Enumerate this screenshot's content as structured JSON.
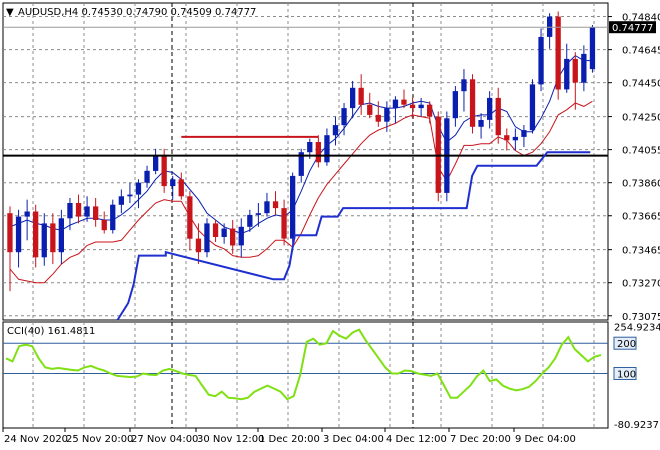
{
  "header": {
    "collapse_glyph": "▼",
    "title": "AUDUSD,H4  0.74530 0.74790 0.74509 0.74777"
  },
  "subwindow": {
    "title": "CCI(40) 161.4811"
  },
  "colors": {
    "bull": "#0a1fb0",
    "bear": "#c8151b",
    "bb_mid": "#0a1fb0",
    "bb_low": "#c8151b",
    "stop_line": "#1f2fd0",
    "resistance": "#000000",
    "cci": "#7fe012",
    "level": "#2f5f9f",
    "grid": "#8c8c8c",
    "price_tag_bg": "#000000",
    "price_tag_fg": "#ffffff"
  },
  "chart_data": [
    {
      "type": "candlestick",
      "symbol": "AUDUSD",
      "timeframe": "H4",
      "ohlc_header": {
        "open": 0.7453,
        "high": 0.7479,
        "low": 0.74509,
        "close": 0.74777
      },
      "current_price_label": "0.74777",
      "ylim": [
        0.7305,
        0.7492
      ],
      "y_ticks": [
        0.7484,
        0.74645,
        0.7445,
        0.7425,
        0.74055,
        0.7386,
        0.73665,
        0.73465,
        0.7327,
        0.73075
      ],
      "y_tick_labels": [
        "0.74840",
        "0.74645",
        "0.74450",
        "0.74250",
        "0.74055",
        "0.73860",
        "0.73665",
        "0.73465",
        "0.73270",
        "0.73075"
      ],
      "x_tick_labels": [
        "24 Nov 2020",
        "25 Nov 20:00",
        "27 Nov 04:00",
        "30 Nov 12:00",
        "1 Dec 20:00",
        "3 Dec 04:00",
        "4 Dec 12:00",
        "7 Dec 20:00",
        "9 Dec 04:00"
      ],
      "candles": [
        [
          0.7368,
          0.7372,
          0.7322,
          0.7345
        ],
        [
          0.7345,
          0.737,
          0.7336,
          0.7366
        ],
        [
          0.7366,
          0.7376,
          0.7352,
          0.7369
        ],
        [
          0.7369,
          0.7373,
          0.7336,
          0.7342
        ],
        [
          0.7342,
          0.7368,
          0.7337,
          0.7362
        ],
        [
          0.7362,
          0.7368,
          0.7338,
          0.7345
        ],
        [
          0.7345,
          0.737,
          0.7338,
          0.7365
        ],
        [
          0.7365,
          0.7377,
          0.7358,
          0.7374
        ],
        [
          0.7374,
          0.7379,
          0.7362,
          0.7366
        ],
        [
          0.7366,
          0.7378,
          0.7363,
          0.7372
        ],
        [
          0.7372,
          0.7377,
          0.736,
          0.7364
        ],
        [
          0.7364,
          0.7369,
          0.7356,
          0.7358
        ],
        [
          0.7358,
          0.7376,
          0.7356,
          0.7373
        ],
        [
          0.7373,
          0.7382,
          0.7368,
          0.7378
        ],
        [
          0.7378,
          0.7386,
          0.7374,
          0.7379
        ],
        [
          0.7379,
          0.7388,
          0.7371,
          0.7386
        ],
        [
          0.7386,
          0.7396,
          0.7383,
          0.7393
        ],
        [
          0.7393,
          0.7406,
          0.7391,
          0.7402
        ],
        [
          0.7402,
          0.7406,
          0.738,
          0.7384
        ],
        [
          0.7384,
          0.739,
          0.7376,
          0.7388
        ],
        [
          0.7388,
          0.7392,
          0.7376,
          0.7378
        ],
        [
          0.7378,
          0.7381,
          0.7346,
          0.7353
        ],
        [
          0.7353,
          0.7362,
          0.7338,
          0.7345
        ],
        [
          0.7345,
          0.7365,
          0.7342,
          0.7362
        ],
        [
          0.7362,
          0.7364,
          0.7351,
          0.7354
        ],
        [
          0.7354,
          0.7362,
          0.735,
          0.7359
        ],
        [
          0.7359,
          0.7364,
          0.7344,
          0.7349
        ],
        [
          0.7349,
          0.7365,
          0.7342,
          0.736
        ],
        [
          0.736,
          0.737,
          0.7357,
          0.7367
        ],
        [
          0.7367,
          0.7374,
          0.736,
          0.7368
        ],
        [
          0.7368,
          0.738,
          0.7366,
          0.7375
        ],
        [
          0.7375,
          0.7381,
          0.7367,
          0.7371
        ],
        [
          0.7371,
          0.7376,
          0.7349,
          0.7353
        ],
        [
          0.7353,
          0.7392,
          0.735,
          0.739
        ],
        [
          0.739,
          0.7406,
          0.7386,
          0.7404
        ],
        [
          0.7404,
          0.7412,
          0.74,
          0.741
        ],
        [
          0.741,
          0.7414,
          0.7395,
          0.7398
        ],
        [
          0.7398,
          0.7418,
          0.7396,
          0.7414
        ],
        [
          0.7414,
          0.7425,
          0.7408,
          0.742
        ],
        [
          0.742,
          0.7433,
          0.7414,
          0.743
        ],
        [
          0.743,
          0.7446,
          0.7424,
          0.7442
        ],
        [
          0.7442,
          0.745,
          0.7426,
          0.7432
        ],
        [
          0.7432,
          0.7439,
          0.7424,
          0.7426
        ],
        [
          0.7426,
          0.7434,
          0.7419,
          0.7422
        ],
        [
          0.7422,
          0.7434,
          0.7416,
          0.743
        ],
        [
          0.743,
          0.7437,
          0.7421,
          0.7435
        ],
        [
          0.7435,
          0.7441,
          0.743,
          0.7432
        ],
        [
          0.7432,
          0.7436,
          0.7424,
          0.743
        ],
        [
          0.743,
          0.7436,
          0.7425,
          0.7432
        ],
        [
          0.7432,
          0.7434,
          0.7421,
          0.7425
        ],
        [
          0.7425,
          0.7428,
          0.7375,
          0.738
        ],
        [
          0.738,
          0.7428,
          0.7375,
          0.7424
        ],
        [
          0.7424,
          0.7443,
          0.7419,
          0.744
        ],
        [
          0.744,
          0.7453,
          0.7428,
          0.7447
        ],
        [
          0.7447,
          0.745,
          0.7415,
          0.7419
        ],
        [
          0.7419,
          0.7427,
          0.7412,
          0.7423
        ],
        [
          0.7423,
          0.744,
          0.7418,
          0.7436
        ],
        [
          0.7436,
          0.7442,
          0.7409,
          0.7414
        ],
        [
          0.7414,
          0.7418,
          0.7405,
          0.7411
        ],
        [
          0.7411,
          0.7418,
          0.7405,
          0.7413
        ],
        [
          0.7413,
          0.742,
          0.7407,
          0.7417
        ],
        [
          0.7417,
          0.7447,
          0.7415,
          0.7444
        ],
        [
          0.7444,
          0.7477,
          0.744,
          0.7472
        ],
        [
          0.7472,
          0.7486,
          0.7465,
          0.7484
        ],
        [
          0.7484,
          0.7487,
          0.7435,
          0.7441
        ],
        [
          0.7441,
          0.7468,
          0.7439,
          0.7459
        ],
        [
          0.7459,
          0.7463,
          0.7429,
          0.7445
        ],
        [
          0.7445,
          0.7467,
          0.744,
          0.7462
        ],
        [
          0.7453,
          0.7479,
          0.74509,
          0.74777
        ]
      ],
      "bb_mid": [
        0.736,
        0.7362,
        0.7364,
        0.7362,
        0.7361,
        0.7359,
        0.7358,
        0.7361,
        0.7363,
        0.7365,
        0.7365,
        0.7364,
        0.7364,
        0.7367,
        0.7371,
        0.7376,
        0.7381,
        0.7388,
        0.7393,
        0.7392,
        0.7388,
        0.7382,
        0.7376,
        0.7368,
        0.7364,
        0.736,
        0.7358,
        0.7356,
        0.7358,
        0.7362,
        0.7365,
        0.7367,
        0.7366,
        0.737,
        0.7381,
        0.7393,
        0.7402,
        0.7408,
        0.7412,
        0.7418,
        0.7425,
        0.7432,
        0.7433,
        0.7431,
        0.743,
        0.743,
        0.7431,
        0.7433,
        0.7434,
        0.7433,
        0.7419,
        0.741,
        0.7414,
        0.7422,
        0.7425,
        0.7426,
        0.7426,
        0.743,
        0.7428,
        0.7419,
        0.7416,
        0.7416,
        0.7424,
        0.7434,
        0.7448,
        0.7456,
        0.7461,
        0.7458,
        0.7458
      ],
      "bb_lower": [
        0.7335,
        0.7329,
        0.7328,
        0.7327,
        0.7327,
        0.7332,
        0.7338,
        0.7342,
        0.7344,
        0.7349,
        0.7351,
        0.7351,
        0.7351,
        0.7352,
        0.7358,
        0.7364,
        0.7369,
        0.7374,
        0.7376,
        0.7375,
        0.7375,
        0.7366,
        0.7358,
        0.7353,
        0.7349,
        0.7347,
        0.7343,
        0.7342,
        0.7342,
        0.7343,
        0.7347,
        0.7352,
        0.7352,
        0.7348,
        0.7356,
        0.7367,
        0.7377,
        0.7385,
        0.7391,
        0.7397,
        0.7403,
        0.7409,
        0.7414,
        0.7417,
        0.7419,
        0.7421,
        0.7424,
        0.7426,
        0.7425,
        0.7424,
        0.7395,
        0.7387,
        0.7397,
        0.7408,
        0.7408,
        0.7409,
        0.7409,
        0.7413,
        0.7411,
        0.7405,
        0.7402,
        0.7404,
        0.7409,
        0.7416,
        0.7426,
        0.7429,
        0.7433,
        0.7431,
        0.7434
      ],
      "resistance_level": 0.7402,
      "short_line": {
        "from_index": 20,
        "to_index": 36,
        "value": 0.7413
      },
      "stop_line": [
        [
          20,
          0.7305
        ],
        [
          22,
          0.7315
        ],
        [
          23,
          0.7326
        ],
        [
          24,
          0.7343
        ],
        [
          29,
          0.7343
        ],
        [
          29,
          0.7345
        ],
        [
          49,
          0.7329
        ],
        [
          51,
          0.7329
        ],
        [
          52,
          0.7337
        ],
        [
          53,
          0.7355
        ],
        [
          57,
          0.7355
        ],
        [
          58,
          0.7366
        ],
        [
          61,
          0.7366
        ],
        [
          62,
          0.7371
        ],
        [
          85,
          0.7371
        ],
        [
          86,
          0.739
        ],
        [
          87,
          0.7396
        ],
        [
          98,
          0.7396
        ],
        [
          100,
          0.7404
        ],
        [
          104,
          0.7404
        ],
        [
          105,
          0.7404
        ],
        [
          108,
          0.7404
        ]
      ]
    },
    {
      "type": "line",
      "name": "CCI(40)",
      "ylim": [
        -80,
        270
      ],
      "y_tick_labels": [
        "254.9234",
        "200",
        "100",
        "-80.9237"
      ],
      "levels": [
        200,
        100
      ],
      "level_labels": [
        "200",
        "100"
      ],
      "values": [
        150,
        140,
        190,
        195,
        190,
        150,
        120,
        115,
        118,
        115,
        112,
        110,
        120,
        125,
        116,
        110,
        100,
        92,
        90,
        88,
        90,
        100,
        96,
        95,
        110,
        115,
        108,
        100,
        95,
        92,
        60,
        30,
        25,
        40,
        20,
        18,
        15,
        20,
        40,
        50,
        60,
        50,
        40,
        15,
        25,
        95,
        205,
        215,
        195,
        200,
        240,
        225,
        215,
        235,
        245,
        210,
        180,
        150,
        120,
        100,
        100,
        110,
        108,
        100,
        96,
        92,
        100,
        60,
        20,
        20,
        40,
        60,
        90,
        110,
        75,
        80,
        60,
        50,
        44,
        48,
        56,
        75,
        100,
        120,
        150,
        195,
        220,
        180,
        160,
        140,
        155,
        161
      ]
    }
  ]
}
